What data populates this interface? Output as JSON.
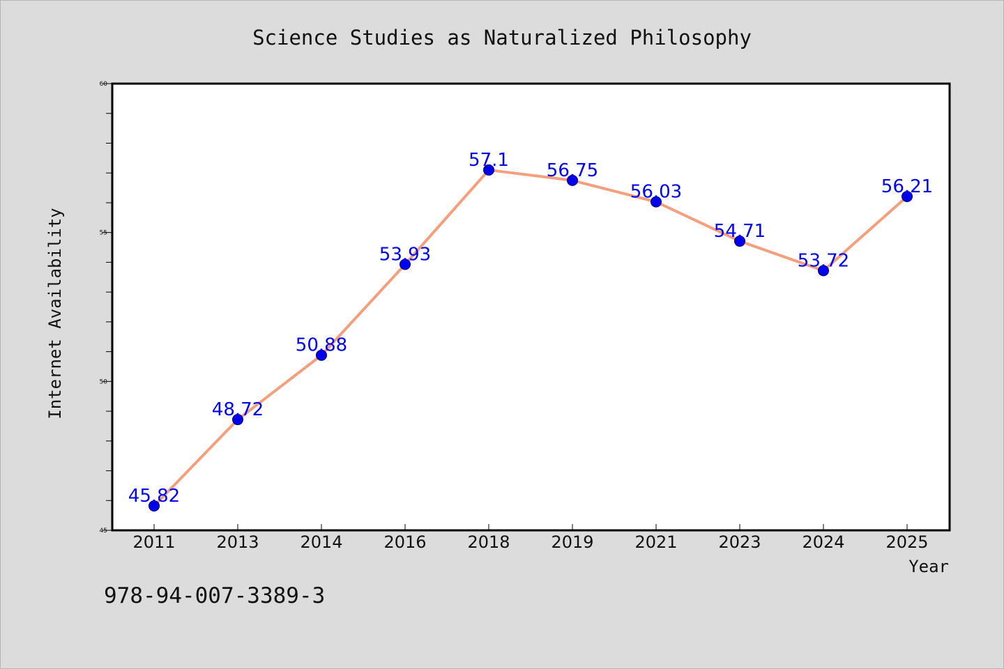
{
  "chart_data": {
    "type": "line",
    "title": "Science Studies as Naturalized Philosophy",
    "xlabel": "Year",
    "ylabel": "Internet Availability",
    "categories": [
      "2011",
      "2013",
      "2014",
      "2016",
      "2018",
      "2019",
      "2021",
      "2023",
      "2024",
      "2025"
    ],
    "series": [
      {
        "values": [
          45.82,
          48.72,
          50.88,
          53.93,
          57.1,
          56.75,
          56.03,
          54.71,
          53.72,
          56.21
        ],
        "labels": [
          "45.82",
          "48.72",
          "50.88",
          "53.93",
          "57.1",
          "56.75",
          "56.03",
          "54.71",
          "53.72",
          "56.21"
        ]
      }
    ],
    "ylim": [
      45,
      60
    ],
    "yticks": [
      45,
      50,
      55,
      60
    ],
    "ytick_labels": [
      "45",
      "50",
      "55",
      "60"
    ],
    "y_minor_step": 1,
    "grid": false,
    "legend": "none",
    "line_color": "#f4a07e",
    "marker_color": "#0000ee",
    "label_color": "#0000ff",
    "background_color": "#dcdcdc",
    "plot_background_color": "#ffffff"
  },
  "footer": {
    "isbn": "978-94-007-3389-3"
  }
}
